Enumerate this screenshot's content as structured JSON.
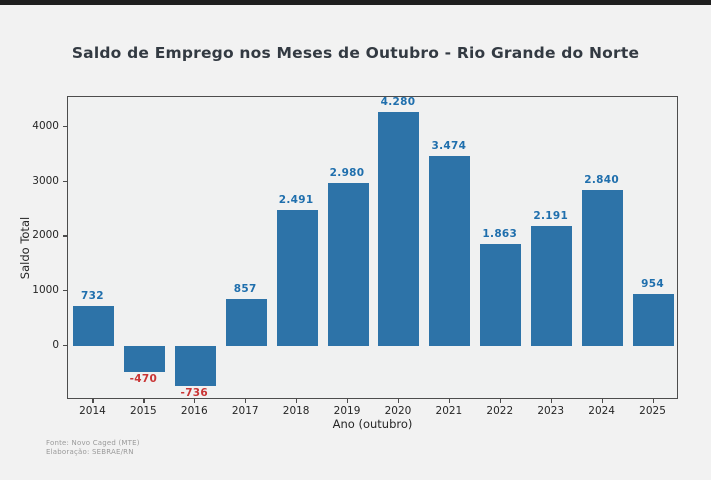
{
  "title": "Saldo de Emprego nos Meses de Outubro - Rio Grande do Norte",
  "footer": {
    "line1": "Fonte: Novo Caged (MTE)",
    "line2": "Elaboração: SEBRAE/RN"
  },
  "chart_data": {
    "type": "bar",
    "title": "Saldo de Emprego nos Meses de Outubro - Rio Grande do Norte",
    "xlabel": "Ano (outubro)",
    "ylabel": "Saldo Total",
    "categories": [
      "2014",
      "2015",
      "2016",
      "2017",
      "2018",
      "2019",
      "2020",
      "2021",
      "2022",
      "2023",
      "2024",
      "2025"
    ],
    "values": [
      732,
      -470,
      -736,
      857,
      2491,
      2980,
      4280,
      3474,
      1863,
      2191,
      2840,
      954
    ],
    "value_labels": [
      "732",
      "-470",
      "-736",
      "857",
      "2.491",
      "2.980",
      "4.280",
      "3.474",
      "1.863",
      "2.191",
      "2.840",
      "954"
    ],
    "yticks": [
      0,
      1000,
      2000,
      3000,
      4000
    ],
    "ylim": [
      -985,
      4545
    ],
    "grid": false,
    "legend": null,
    "colors": {
      "bar": "#2d73a8",
      "positive_label": "#1f6fad",
      "negative_label": "#c93535",
      "tick_text": "#262626",
      "title_text": "#333a42",
      "footer_text": "#9a9a9a",
      "figure_background": "#f2f2f2",
      "plot_background": "#f0f1f1"
    }
  }
}
